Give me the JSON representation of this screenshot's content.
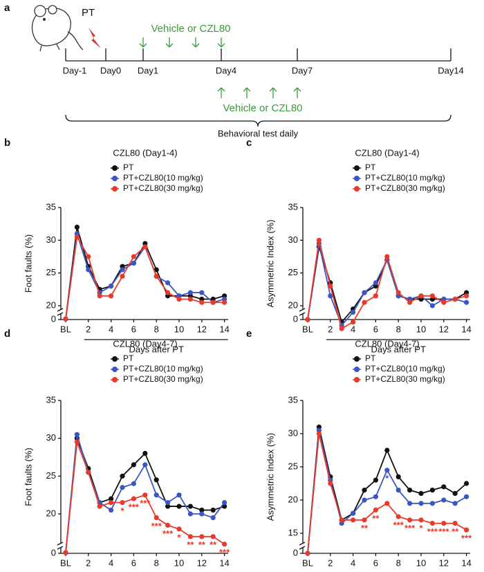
{
  "panel_a": {
    "label": "a",
    "pt": "PT",
    "vehicle_top": "Vehicle or CZL80",
    "vehicle_bottom": "Vehicle or CZL80",
    "days": [
      "Day-1",
      "Day0",
      "Day1",
      "Day4",
      "Day7",
      "Day14"
    ],
    "behavior": "Behavioral test daily"
  },
  "chart_data": [
    {
      "type": "line",
      "panel_label": "b",
      "title": "CZL80 (Day1-4)",
      "y_label": "Foot faults (%)",
      "x_label": "Days after PT",
      "categories": [
        "BL",
        null,
        "2",
        null,
        "4",
        null,
        "6",
        null,
        "8",
        null,
        "10",
        null,
        "12",
        null,
        "14"
      ],
      "ylim": [
        0,
        35
      ],
      "yticks": [
        0,
        20,
        25,
        30,
        35
      ],
      "y_axis_break": true,
      "legend": "top",
      "series": [
        {
          "name": "PT",
          "color": "#111111",
          "values": [
            1.5,
            32,
            26,
            22.5,
            23,
            26,
            26.5,
            29.5,
            25.5,
            21.5,
            21.5,
            21.5,
            21,
            21,
            21.5
          ]
        },
        {
          "name": "PT+CZL80(10 mg/kg)",
          "color": "#3a55c4",
          "values": [
            1.5,
            31,
            25.5,
            22,
            23,
            25.5,
            26.5,
            29,
            24.5,
            23.5,
            21.5,
            22,
            22,
            20.5,
            21
          ]
        },
        {
          "name": "PT+CZL80(30 mg/kg)",
          "color": "#e8392b",
          "values": [
            1.5,
            30.5,
            27.5,
            21.5,
            21.5,
            24.5,
            27.5,
            29,
            24.5,
            22,
            21,
            21,
            20.5,
            20.5,
            20.5
          ]
        }
      ]
    },
    {
      "type": "line",
      "panel_label": "c",
      "title": "CZL80 (Day1-4)",
      "y_label": "Asymmetric Index (%)",
      "x_label": "Days after PT",
      "categories": [
        "BL",
        null,
        "2",
        null,
        "4",
        null,
        "6",
        null,
        "8",
        null,
        "10",
        null,
        "12",
        null,
        "14"
      ],
      "ylim": [
        0,
        35
      ],
      "yticks": [
        0,
        20,
        25,
        30,
        35
      ],
      "y_axis_break": true,
      "legend": "top",
      "series": [
        {
          "name": "PT",
          "color": "#111111",
          "values": [
            0,
            29,
            23.5,
            17.5,
            19.5,
            22,
            23,
            27,
            21.5,
            21,
            21,
            21,
            21,
            21,
            22
          ]
        },
        {
          "name": "PT+CZL80(10 mg/kg)",
          "color": "#3a55c4",
          "values": [
            0,
            29.5,
            21.5,
            17,
            19,
            22,
            23.5,
            27,
            21.5,
            21,
            21.5,
            20,
            21,
            21,
            20.5
          ]
        },
        {
          "name": "PT+CZL80(30 mg/kg)",
          "color": "#e8392b",
          "values": [
            0,
            30,
            23,
            16.5,
            17.5,
            20.5,
            21.5,
            27.5,
            22,
            20.5,
            21.5,
            21.5,
            20.5,
            21,
            21.5
          ]
        }
      ]
    },
    {
      "type": "line",
      "panel_label": "d",
      "title": "CZL80 (Day4-7)",
      "y_label": "Foot faults (%)",
      "x_label": "Days after PT",
      "categories": [
        "BL",
        null,
        "2",
        null,
        "4",
        null,
        "6",
        null,
        "8",
        null,
        "10",
        null,
        "12",
        null,
        "14"
      ],
      "ylim": [
        0,
        35
      ],
      "yticks": [
        0,
        20,
        25,
        30,
        35
      ],
      "y_axis_break": true,
      "legend": "top",
      "series": [
        {
          "name": "PT",
          "color": "#111111",
          "values": [
            1.5,
            30,
            26,
            21.5,
            22,
            25,
            26.5,
            28,
            24.5,
            21,
            21,
            21,
            20.5,
            20.5,
            21
          ]
        },
        {
          "name": "PT+CZL80(10 mg/kg)",
          "color": "#3a55c4",
          "values": [
            1.5,
            30.5,
            25.5,
            21.5,
            20.5,
            23.5,
            24,
            26.5,
            22.5,
            21.5,
            22.5,
            20,
            20,
            19.5,
            21.5
          ]
        },
        {
          "name": "PT+CZL80(30 mg/kg)",
          "color": "#e8392b",
          "values": [
            1.5,
            29.5,
            25.5,
            21,
            21.5,
            21.5,
            22,
            22.5,
            19.5,
            18.5,
            18,
            17,
            17,
            17,
            16
          ],
          "significance": [
            null,
            null,
            null,
            null,
            null,
            "*",
            "***",
            "***",
            "***",
            "***",
            "*",
            "**",
            "**",
            "**",
            "***"
          ]
        }
      ]
    },
    {
      "type": "line",
      "panel_label": "e",
      "title": "CZL80 (Day4-7)",
      "y_label": "Asymmetric Index (%)",
      "x_label": "Days after PT",
      "categories": [
        "BL",
        null,
        "2",
        null,
        "4",
        null,
        "6",
        null,
        "8",
        null,
        "10",
        null,
        "12",
        null,
        "14"
      ],
      "ylim": [
        0,
        35
      ],
      "yticks": [
        0,
        15,
        20,
        25,
        30,
        35
      ],
      "y_axis_break": true,
      "legend": "top",
      "series": [
        {
          "name": "PT",
          "color": "#111111",
          "values": [
            0,
            31,
            23.5,
            17,
            18,
            21.5,
            23,
            27.5,
            23.5,
            21.5,
            21,
            21.5,
            22,
            21,
            22.5
          ]
        },
        {
          "name": "PT+CZL80(10 mg/kg)",
          "color": "#3a55c4",
          "values": [
            0,
            30.5,
            23,
            16.5,
            18,
            20,
            20.5,
            24.5,
            21.5,
            19.5,
            19.5,
            19.5,
            20,
            19.5,
            20.5
          ],
          "significance": [
            null,
            null,
            null,
            null,
            null,
            null,
            null,
            "*",
            null,
            null,
            null,
            null,
            null,
            null,
            null
          ]
        },
        {
          "name": "PT+CZL80(30 mg/kg)",
          "color": "#e8392b",
          "values": [
            0,
            30,
            22.5,
            17,
            17,
            17,
            18.5,
            19.5,
            17.5,
            17,
            17,
            16.5,
            16.5,
            16.5,
            15.5
          ],
          "significance": [
            null,
            null,
            null,
            null,
            null,
            "**",
            "**",
            null,
            "***",
            "***",
            "*",
            "***",
            "***",
            "**",
            "***"
          ]
        }
      ]
    }
  ]
}
